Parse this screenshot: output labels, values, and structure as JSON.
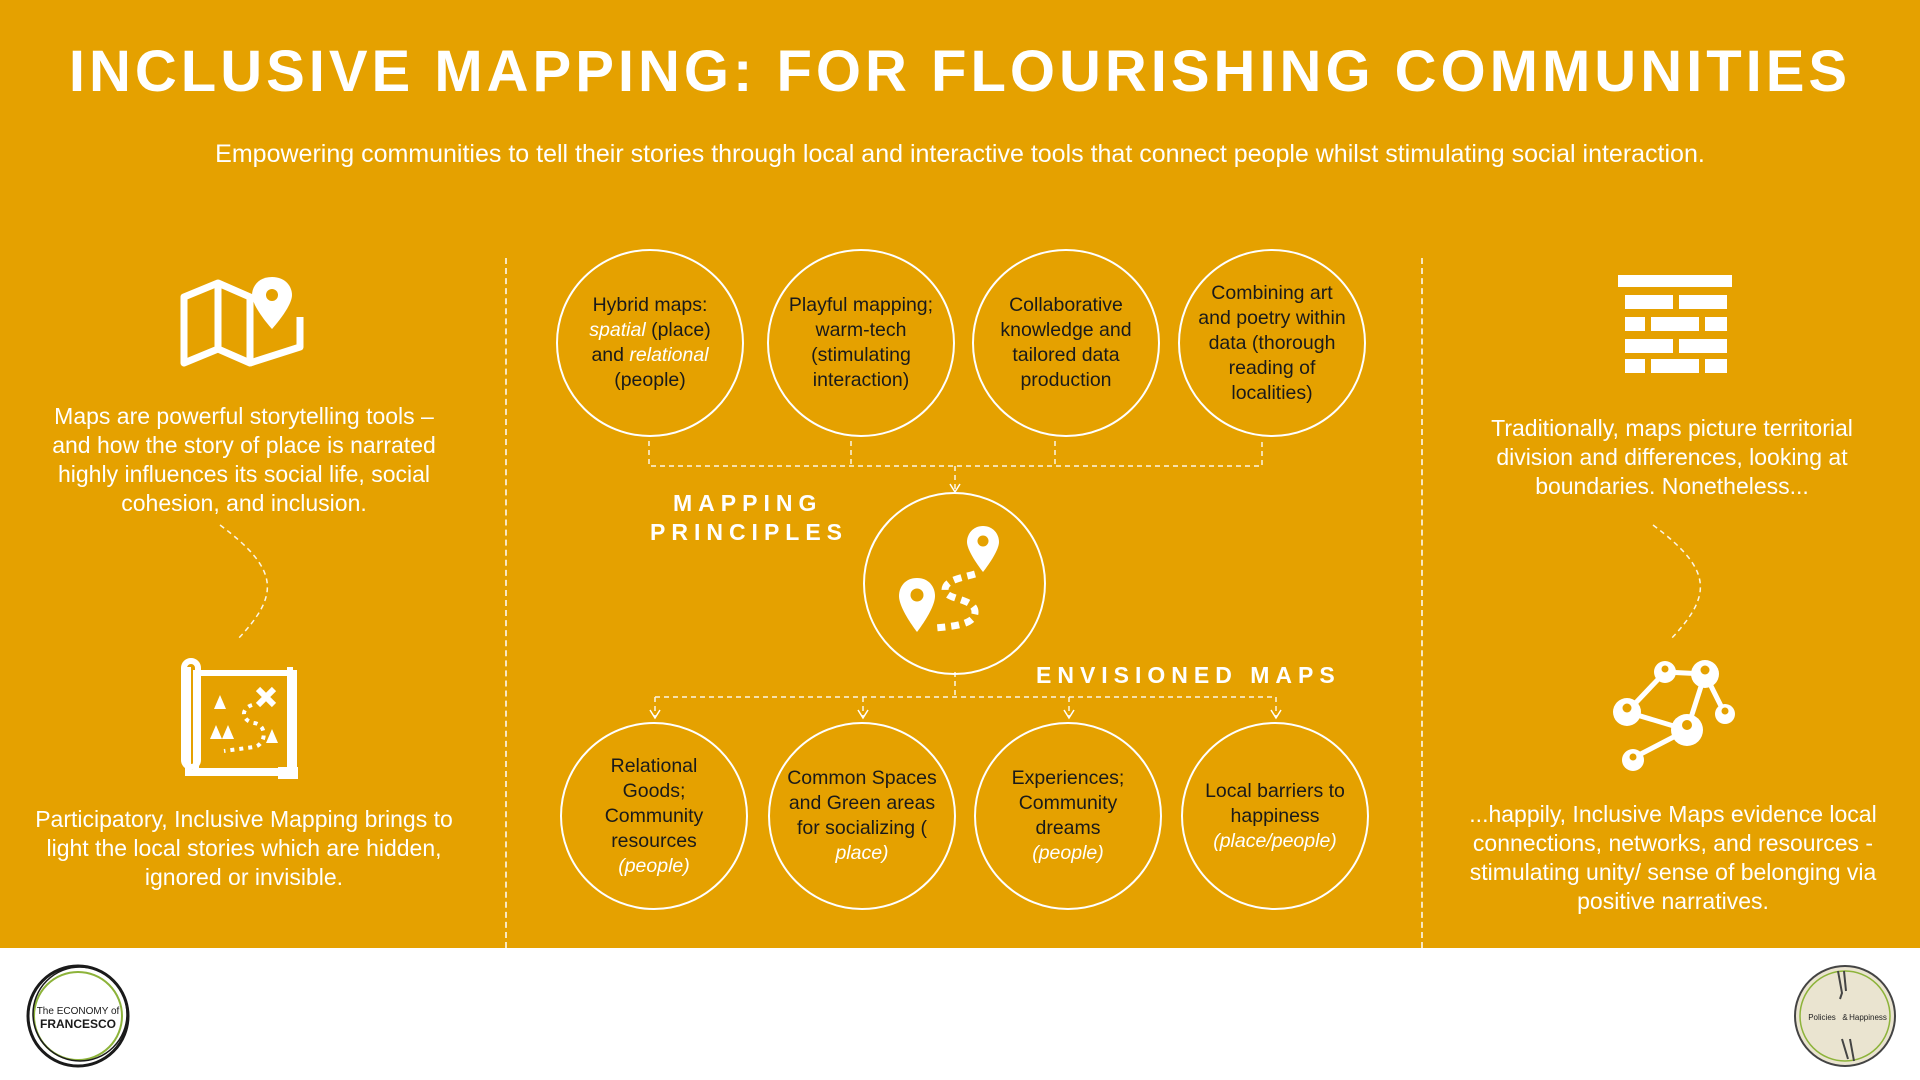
{
  "header": {
    "title": "INCLUSIVE MAPPING: FOR FLOURISHING COMMUNITIES",
    "subtitle": "Empowering communities to tell their stories through local and interactive tools that connect people whilst stimulating social interaction."
  },
  "left": {
    "top_text": "Maps are powerful storytelling tools – and how the story of place is narrated highly influences its social life, social cohesion, and inclusion.",
    "bottom_text": "Participatory, Inclusive Mapping  brings to light the local stories which are hidden, ignored or invisible.",
    "icons": [
      "folded-map-pin-icon",
      "treasure-map-icon"
    ]
  },
  "right": {
    "top_text": "Traditionally, maps picture territorial division and differences, looking at boundaries. Nonetheless...",
    "bottom_text": "...happily, Inclusive Maps evidence local connections, networks, and resources - stimulating unity/ sense of belonging via positive narratives.",
    "icons": [
      "brick-wall-icon",
      "people-network-icon"
    ]
  },
  "center": {
    "principles_label_line1": "MAPPING",
    "principles_label_line2": "PRINCIPLES",
    "envisioned_label": "ENVISIONED MAPS",
    "principles": [
      {
        "pre": "Hybrid maps: ",
        "em1": "spatial",
        "mid": " (place) and ",
        "em2": "relational",
        "post": " (people)"
      },
      {
        "text": "Playful mapping; warm-tech (stimulating interaction)"
      },
      {
        "text": "Collaborative knowledge and tailored data production"
      },
      {
        "text": "Combining art and poetry within data (thorough reading of localities)"
      }
    ],
    "envisioned": [
      {
        "text": "Relational Goods; Community resources",
        "sub": "(people)"
      },
      {
        "text": "Common Spaces and Green areas for socializing (",
        "sub": "place)"
      },
      {
        "text": "Experiences; Community dreams",
        "sub": "(people)"
      },
      {
        "text": "Local barriers to happiness",
        "sub": "(place/people)"
      }
    ],
    "center_icon": "route-pins-icon"
  },
  "footer": {
    "left_logo_line1": "The ECONOMY of",
    "left_logo_line2": "FRANCESCO",
    "right_logo_line1": "Policies",
    "right_logo_amp": "&",
    "right_logo_line2": "Happiness"
  },
  "colors": {
    "background": "#E5A100",
    "text_light": "#FFFFFF",
    "text_dark": "#1A1A1A",
    "footer": "#FFFFFF"
  }
}
